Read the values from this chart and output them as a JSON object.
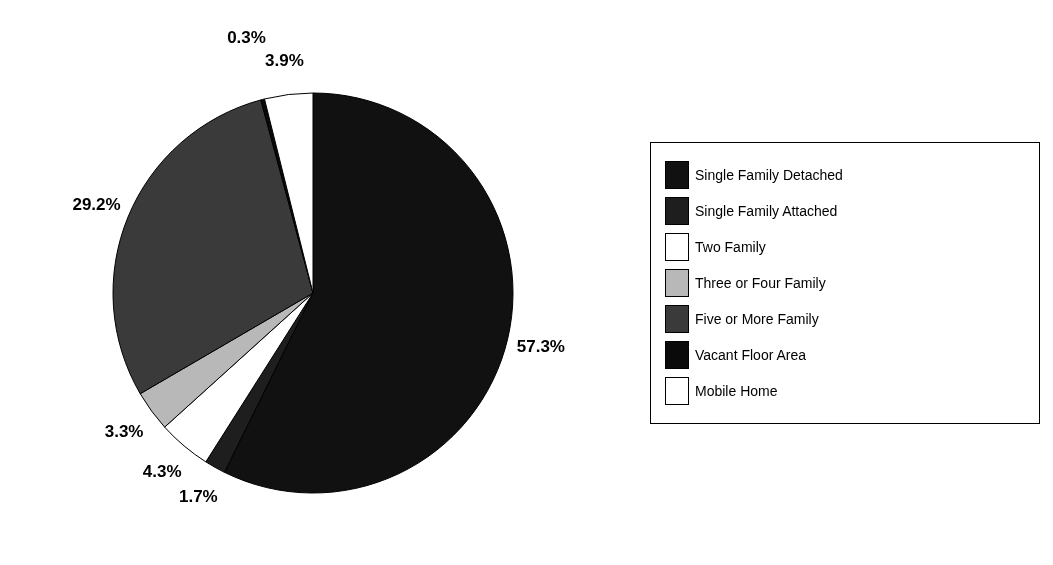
{
  "chart_data": {
    "type": "pie",
    "categories": [
      "Single Family Detached",
      "Single Family Attached",
      "Two Family",
      "Three or Four Family",
      "Five or More Family",
      "Vacant Floor Area",
      "Mobile Home"
    ],
    "values": [
      57.3,
      1.7,
      4.3,
      3.3,
      29.2,
      0.3,
      3.9
    ],
    "value_labels": [
      "57.3%",
      "1.7%",
      "4.3%",
      "3.3%",
      "29.2%",
      "0.3%",
      "3.9%"
    ],
    "colors": [
      "#111111",
      "#1e1e1e",
      "#ffffff",
      "#b8b8b8",
      "#3a3a3a",
      "#0a0a0a",
      "#ffffff"
    ],
    "legend": "right"
  }
}
